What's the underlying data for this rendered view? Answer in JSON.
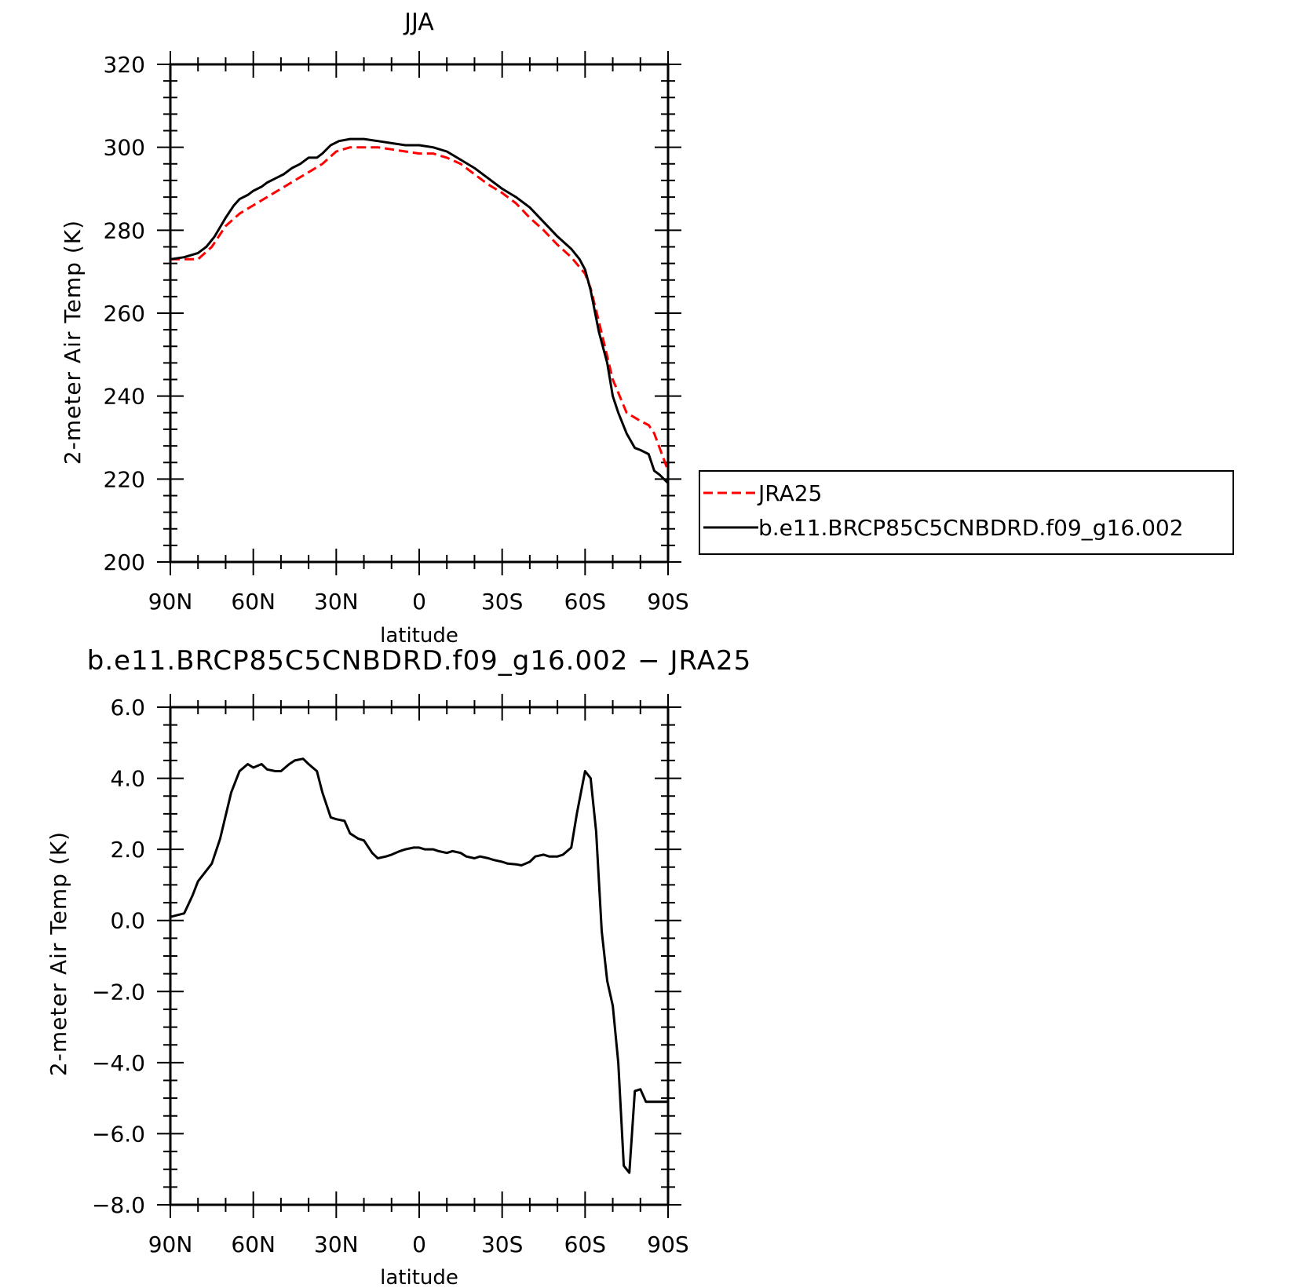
{
  "chart_data": [
    {
      "type": "line",
      "title": "JJA",
      "xlabel": "latitude",
      "ylabel": "2-meter Air Temp (K)",
      "xlim": [
        90,
        -90
      ],
      "ylim": [
        200,
        320
      ],
      "x_ticks": [
        90,
        60,
        30,
        0,
        -30,
        -60,
        -90
      ],
      "x_tick_labels": [
        "90N",
        "60N",
        "30N",
        "0",
        "30S",
        "60S",
        "90S"
      ],
      "y_ticks": [
        200,
        220,
        240,
        260,
        280,
        300,
        320
      ],
      "y_tick_labels": [
        "200",
        "220",
        "240",
        "260",
        "280",
        "300",
        "320"
      ],
      "legend": {
        "placement": "right, outside plot"
      },
      "series": [
        {
          "name": "JRA25",
          "color": "#ff0000",
          "dash": "dashed",
          "x": [
            90,
            85,
            80,
            75,
            70,
            65,
            60,
            55,
            50,
            45,
            40,
            35,
            30,
            25,
            20,
            15,
            10,
            5,
            0,
            -5,
            -10,
            -15,
            -20,
            -25,
            -30,
            -35,
            -40,
            -45,
            -50,
            -55,
            -60,
            -62,
            -65,
            -70,
            -75,
            -80,
            -83,
            -85,
            -90
          ],
          "values": [
            273,
            273,
            273,
            276,
            281,
            284,
            286,
            288,
            290,
            292,
            294,
            296,
            299,
            300,
            300,
            300,
            299.5,
            299,
            298.5,
            298.5,
            297.5,
            296,
            293.5,
            291,
            289,
            286.5,
            283,
            280,
            276.5,
            273.5,
            269.5,
            266,
            258,
            244,
            236,
            234,
            233,
            231,
            222
          ]
        },
        {
          "name": "b.e11.BRCP85C5CNBDRD.f09_g16.002",
          "color": "#000000",
          "dash": "solid",
          "x": [
            90,
            85,
            80,
            77,
            74,
            70,
            67,
            65,
            62,
            60,
            57,
            55,
            52,
            49,
            46,
            43,
            40,
            37,
            35,
            32,
            29,
            25,
            20,
            15,
            10,
            5,
            0,
            -5,
            -10,
            -15,
            -20,
            -25,
            -30,
            -35,
            -40,
            -45,
            -50,
            -55,
            -58,
            -60,
            -62,
            -65,
            -68,
            -70,
            -72,
            -75,
            -78,
            -80,
            -83,
            -85,
            -87,
            -90
          ],
          "values": [
            273,
            273.5,
            274.5,
            276,
            278.5,
            283,
            286,
            287.5,
            288.5,
            289.5,
            290.5,
            291.5,
            292.5,
            293.5,
            295,
            296,
            297.5,
            297.5,
            298.5,
            300.5,
            301.5,
            302,
            302,
            301.5,
            301,
            300.5,
            300.5,
            300,
            299,
            297,
            295,
            292.5,
            290,
            288,
            285.5,
            282,
            278.5,
            275.5,
            273,
            270.5,
            265.5,
            255.5,
            248,
            240,
            236,
            231,
            227.5,
            227,
            226,
            222,
            221,
            219
          ]
        }
      ]
    },
    {
      "type": "line",
      "title": "b.e11.BRCP85C5CNBDRD.f09_g16.002 − JRA25",
      "xlabel": "latitude",
      "ylabel": "2-meter Air Temp (K)",
      "xlim": [
        90,
        -90
      ],
      "ylim": [
        -8,
        6
      ],
      "x_ticks": [
        90,
        60,
        30,
        0,
        -30,
        -60,
        -90
      ],
      "x_tick_labels": [
        "90N",
        "60N",
        "30N",
        "0",
        "30S",
        "60S",
        "90S"
      ],
      "y_ticks": [
        -8,
        -6,
        -4,
        -2,
        0,
        2,
        4,
        6
      ],
      "y_tick_labels": [
        "−8.0",
        "−6.0",
        "−4.0",
        "−2.0",
        "0.0",
        "2.0",
        "4.0",
        "6.0"
      ],
      "series": [
        {
          "color": "#000000",
          "dash": "solid",
          "x": [
            90,
            85,
            82,
            80,
            78,
            75,
            72,
            68,
            65,
            62,
            60,
            57,
            55,
            52,
            50,
            47,
            45,
            42,
            40,
            37,
            35,
            32,
            30,
            27,
            25,
            22,
            20,
            17,
            15,
            12,
            10,
            7,
            5,
            2,
            0,
            -2,
            -5,
            -7,
            -10,
            -12,
            -15,
            -17,
            -20,
            -22,
            -25,
            -27,
            -30,
            -32,
            -35,
            -37,
            -40,
            -42,
            -45,
            -47,
            -50,
            -52,
            -55,
            -57,
            -60,
            -62,
            -64,
            -66,
            -68,
            -70,
            -72,
            -74,
            -76,
            -78,
            -80,
            -82,
            -83,
            -85,
            -87,
            -90
          ],
          "values": [
            0.1,
            0.2,
            0.7,
            1.1,
            1.3,
            1.6,
            2.3,
            3.6,
            4.2,
            4.4,
            4.3,
            4.4,
            4.25,
            4.2,
            4.2,
            4.4,
            4.5,
            4.55,
            4.4,
            4.2,
            3.6,
            2.9,
            2.85,
            2.8,
            2.45,
            2.3,
            2.25,
            1.9,
            1.75,
            1.8,
            1.85,
            1.95,
            2.0,
            2.05,
            2.05,
            2.0,
            2.0,
            1.95,
            1.9,
            1.95,
            1.9,
            1.8,
            1.75,
            1.8,
            1.75,
            1.7,
            1.65,
            1.6,
            1.58,
            1.55,
            1.65,
            1.8,
            1.85,
            1.8,
            1.8,
            1.85,
            2.05,
            3.0,
            4.2,
            4.0,
            2.5,
            -0.3,
            -1.7,
            -2.4,
            -4.0,
            -6.9,
            -7.1,
            -4.8,
            -4.75,
            -5.1,
            -5.1,
            -5.1,
            -5.1,
            -5.1
          ]
        }
      ]
    }
  ]
}
